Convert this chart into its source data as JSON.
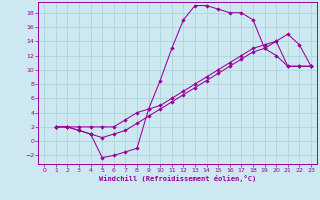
{
  "xlabel": "Windchill (Refroidissement éolien,°C)",
  "bg_color": "#cde8f0",
  "line_color": "#990099",
  "grid_color": "#a8d8d8",
  "xlim": [
    -0.5,
    23.5
  ],
  "ylim": [
    -3.2,
    19.5
  ],
  "xticks": [
    0,
    1,
    2,
    3,
    4,
    5,
    6,
    7,
    8,
    9,
    10,
    11,
    12,
    13,
    14,
    15,
    16,
    17,
    18,
    19,
    20,
    21,
    22,
    23
  ],
  "yticks": [
    -2,
    0,
    2,
    4,
    6,
    8,
    10,
    12,
    14,
    16,
    18
  ],
  "line1_x": [
    1,
    2,
    3,
    4,
    5,
    6,
    7,
    8,
    9,
    10,
    11,
    12,
    13,
    14,
    15,
    16,
    17,
    18,
    19,
    20,
    21,
    22,
    23
  ],
  "line1_y": [
    2,
    2,
    1.5,
    1,
    -2.3,
    -2,
    -1.5,
    -1,
    4.5,
    8.5,
    13,
    17,
    19,
    19,
    18.5,
    18,
    18,
    17,
    13,
    12,
    10.5,
    10.5,
    10.5
  ],
  "line2_x": [
    1,
    2,
    3,
    4,
    5,
    6,
    7,
    8,
    9,
    10,
    11,
    12,
    13,
    14,
    15,
    16,
    17,
    18,
    19,
    20,
    21,
    22,
    23
  ],
  "line2_y": [
    2,
    2,
    1.5,
    1,
    0.5,
    1,
    1.5,
    2.5,
    3.5,
    4.5,
    5.5,
    6.5,
    7.5,
    8.5,
    9.5,
    10.5,
    11.5,
    12.5,
    13,
    14,
    15,
    13.5,
    10.5
  ],
  "line3_x": [
    1,
    2,
    3,
    4,
    5,
    6,
    7,
    8,
    9,
    10,
    11,
    12,
    13,
    14,
    15,
    16,
    17,
    18,
    19,
    20,
    21,
    22,
    23
  ],
  "line3_y": [
    2,
    2,
    2,
    2,
    2,
    2,
    3,
    4,
    4.5,
    5,
    6,
    7,
    8,
    9,
    10,
    11,
    12,
    13,
    13.5,
    14,
    10.5,
    10.5,
    10.5
  ]
}
